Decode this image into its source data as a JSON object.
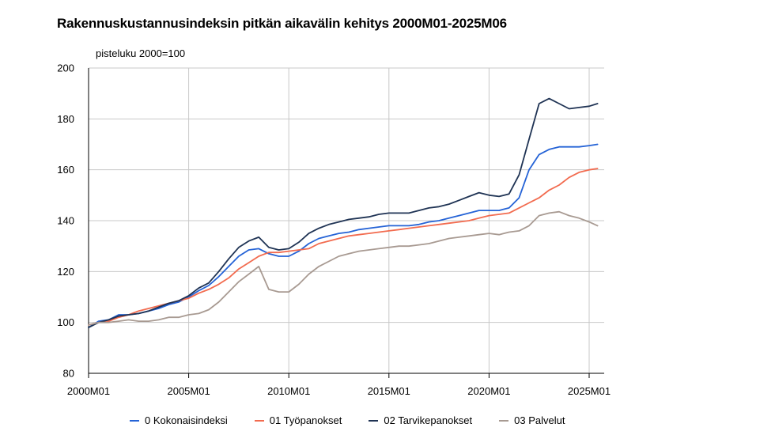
{
  "chart_data": {
    "type": "line",
    "title": "Rakennuskustannusindeksin pitkän aikavälin kehitys 2000M01-2025M06",
    "ylabel": "pisteluku 2000=100",
    "xlabel": "",
    "ylim": [
      80,
      200
    ],
    "yticks": [
      80,
      100,
      120,
      140,
      160,
      180,
      200
    ],
    "xticks": [
      "2000M01",
      "2005M01",
      "2010M01",
      "2015M01",
      "2020M01",
      "2025M01"
    ],
    "grid": "horizontal",
    "legend_position": "bottom",
    "x": [
      2000.0,
      2000.5,
      2001.0,
      2001.5,
      2002.0,
      2002.5,
      2003.0,
      2003.5,
      2004.0,
      2004.5,
      2005.0,
      2005.5,
      2006.0,
      2006.5,
      2007.0,
      2007.5,
      2008.0,
      2008.5,
      2009.0,
      2009.5,
      2010.0,
      2010.5,
      2011.0,
      2011.5,
      2012.0,
      2012.5,
      2013.0,
      2013.5,
      2014.0,
      2014.5,
      2015.0,
      2015.5,
      2016.0,
      2016.5,
      2017.0,
      2017.5,
      2018.0,
      2018.5,
      2019.0,
      2019.5,
      2020.0,
      2020.5,
      2021.0,
      2021.5,
      2022.0,
      2022.5,
      2023.0,
      2023.5,
      2024.0,
      2024.5,
      2025.0,
      2025.42
    ],
    "series": [
      {
        "name": "0 Kokonaisindeksi",
        "color": "#2563d6",
        "values": [
          98.0,
          100.5,
          101.0,
          103.0,
          103.0,
          103.5,
          104.5,
          105.5,
          107.0,
          108.0,
          110.0,
          112.5,
          114.5,
          118.0,
          122.0,
          126.0,
          128.5,
          129.0,
          127.0,
          126.0,
          126.0,
          128.0,
          131.0,
          133.0,
          134.0,
          135.0,
          135.5,
          136.5,
          137.0,
          137.5,
          138.0,
          138.0,
          138.0,
          138.5,
          139.5,
          140.0,
          141.0,
          142.0,
          143.0,
          144.0,
          144.0,
          144.0,
          145.0,
          149.0,
          160.0,
          166.0,
          168.0,
          169.0,
          169.0,
          169.0,
          169.5,
          170.0
        ]
      },
      {
        "name": "01 Työpanokset",
        "color": "#f26b4f",
        "values": [
          99.0,
          100.0,
          100.5,
          102.0,
          103.0,
          104.5,
          105.5,
          106.5,
          107.5,
          108.5,
          109.5,
          111.5,
          113.0,
          115.0,
          117.5,
          121.0,
          123.5,
          126.0,
          127.5,
          127.5,
          128.0,
          128.5,
          129.0,
          131.0,
          132.0,
          133.0,
          134.0,
          134.5,
          135.0,
          135.5,
          136.0,
          136.5,
          137.0,
          137.5,
          138.0,
          138.5,
          139.0,
          139.5,
          140.0,
          141.0,
          142.0,
          142.5,
          143.0,
          145.0,
          147.0,
          149.0,
          152.0,
          154.0,
          157.0,
          159.0,
          160.0,
          160.5
        ]
      },
      {
        "name": "02 Tarvikepanokset",
        "color": "#1f3354",
        "values": [
          98.0,
          100.0,
          101.0,
          102.5,
          103.0,
          103.5,
          104.5,
          106.0,
          107.5,
          108.5,
          110.5,
          113.5,
          115.5,
          120.0,
          125.0,
          129.5,
          132.0,
          133.5,
          129.5,
          128.5,
          129.0,
          131.5,
          135.0,
          137.0,
          138.5,
          139.5,
          140.5,
          141.0,
          141.5,
          142.5,
          143.0,
          143.0,
          143.0,
          144.0,
          145.0,
          145.5,
          146.5,
          148.0,
          149.5,
          151.0,
          150.0,
          149.5,
          150.5,
          158.0,
          172.0,
          186.0,
          188.0,
          186.0,
          184.0,
          184.5,
          185.0,
          186.0
        ]
      },
      {
        "name": "03 Palvelut",
        "color": "#a89a92",
        "values": [
          99.0,
          100.0,
          100.0,
          100.5,
          101.0,
          100.5,
          100.5,
          101.0,
          102.0,
          102.0,
          103.0,
          103.5,
          105.0,
          108.0,
          112.0,
          116.0,
          119.0,
          122.0,
          113.0,
          112.0,
          112.0,
          115.0,
          119.0,
          122.0,
          124.0,
          126.0,
          127.0,
          128.0,
          128.5,
          129.0,
          129.5,
          130.0,
          130.0,
          130.5,
          131.0,
          132.0,
          133.0,
          133.5,
          134.0,
          134.5,
          135.0,
          134.5,
          135.5,
          136.0,
          138.0,
          142.0,
          143.0,
          143.5,
          142.0,
          141.0,
          139.5,
          138.0
        ]
      }
    ]
  }
}
